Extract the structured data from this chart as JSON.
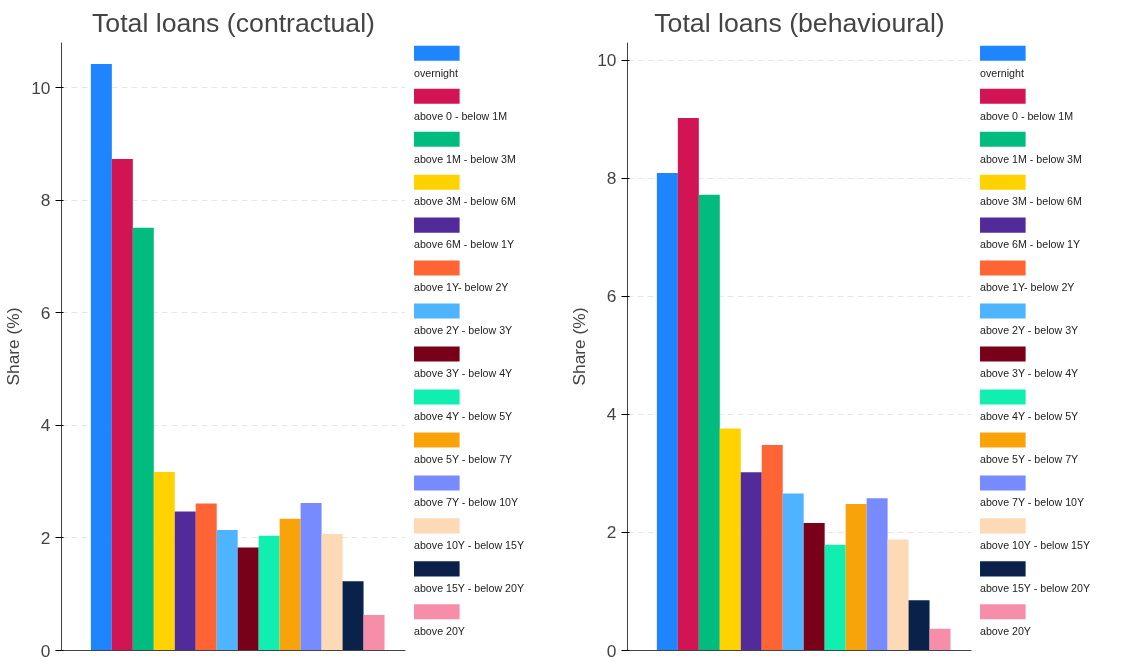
{
  "chart_data": [
    {
      "type": "bar",
      "title": "Total loans (contractual)",
      "ylabel": "Share (%)",
      "categories": [
        null
      ],
      "ylim": [
        0,
        10.8
      ],
      "yticks": [
        0,
        2,
        4,
        6,
        8,
        10
      ],
      "grid": "y",
      "legend": "right",
      "tick_labels": "y",
      "series": [
        {
          "name": "overnight",
          "color": "#1e85ff",
          "values": [
            10.42
          ]
        },
        {
          "name": "above 0 - below 1M",
          "color": "#d31454",
          "values": [
            8.73
          ]
        },
        {
          "name": "above 1M - below 3M",
          "color": "#00bc7f",
          "values": [
            7.51
          ]
        },
        {
          "name": "above 3M - below 6M",
          "color": "#ffd200",
          "values": [
            3.17
          ]
        },
        {
          "name": "above 6M - below 1Y",
          "color": "#512b9a",
          "values": [
            2.47
          ]
        },
        {
          "name": "above 1Y- below 2Y",
          "color": "#ff6434",
          "values": [
            2.61
          ]
        },
        {
          "name": "above 2Y - below 3Y",
          "color": "#4fb4ff",
          "values": [
            2.14
          ]
        },
        {
          "name": "above 3Y - below 4Y",
          "color": "#780018",
          "values": [
            1.83
          ]
        },
        {
          "name": "above 4Y - below 5Y",
          "color": "#10efb0",
          "values": [
            2.04
          ]
        },
        {
          "name": "above 5Y - below 7Y",
          "color": "#f9a30a",
          "values": [
            2.34
          ]
        },
        {
          "name": "above 7Y - below 10Y",
          "color": "#778bfe",
          "values": [
            2.62
          ]
        },
        {
          "name": "above 10Y - below 15Y",
          "color": "#fdd9b5",
          "values": [
            2.07
          ]
        },
        {
          "name": "above 15Y - below 20Y",
          "color": "#0a2249",
          "values": [
            1.23
          ]
        },
        {
          "name": "above 20Y",
          "color": "#f68ea9",
          "values": [
            0.63
          ]
        }
      ]
    },
    {
      "type": "bar",
      "title": "Total loans (behavioural)",
      "ylabel": "Share (%)",
      "categories": [
        null
      ],
      "ylim": [
        0,
        10.3
      ],
      "yticks": [
        0,
        2,
        4,
        6,
        8,
        10
      ],
      "grid": "y",
      "legend": "right",
      "tick_labels": "y",
      "series": [
        {
          "name": "overnight",
          "color": "#1e85ff",
          "values": [
            8.09
          ]
        },
        {
          "name": "above 0 - below 1M",
          "color": "#d31454",
          "values": [
            9.02
          ]
        },
        {
          "name": "above 1M - below 3M",
          "color": "#00bc7f",
          "values": [
            7.72
          ]
        },
        {
          "name": "above 3M - below 6M",
          "color": "#ffd200",
          "values": [
            3.76
          ]
        },
        {
          "name": "above 6M - below 1Y",
          "color": "#512b9a",
          "values": [
            3.02
          ]
        },
        {
          "name": "above 1Y- below 2Y",
          "color": "#ff6434",
          "values": [
            3.48
          ]
        },
        {
          "name": "above 2Y - below 3Y",
          "color": "#4fb4ff",
          "values": [
            2.66
          ]
        },
        {
          "name": "above 3Y - below 4Y",
          "color": "#780018",
          "values": [
            2.16
          ]
        },
        {
          "name": "above 4Y - below 5Y",
          "color": "#10efb0",
          "values": [
            1.79
          ]
        },
        {
          "name": "above 5Y - below 7Y",
          "color": "#f9a30a",
          "values": [
            2.48
          ]
        },
        {
          "name": "above 7Y - below 10Y",
          "color": "#778bfe",
          "values": [
            2.58
          ]
        },
        {
          "name": "above 10Y - below 15Y",
          "color": "#fdd9b5",
          "values": [
            1.88
          ]
        },
        {
          "name": "above 15Y - below 20Y",
          "color": "#0a2249",
          "values": [
            0.85
          ]
        },
        {
          "name": "above 20Y",
          "color": "#f68ea9",
          "values": [
            0.37
          ]
        }
      ]
    }
  ]
}
